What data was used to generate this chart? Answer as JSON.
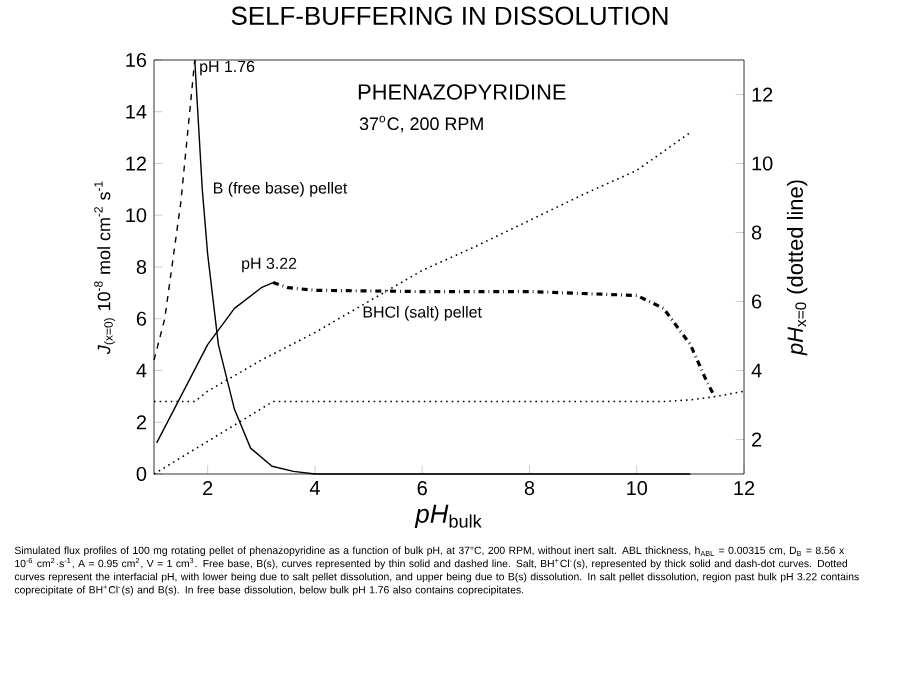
{
  "chart_data": {
    "type": "line",
    "title": "SELF-BUFFERING IN DISSOLUTION",
    "xlabel": "*pH*$_{bulk}$",
    "ylabel": "*J*$_{(x=0)}$ 10$^{-8}$ mol cm$^{-2}$ s$^{-1}$",
    "y2label": "*pH*$_{x=0}$ (dotted line)",
    "xlim": [
      1,
      12
    ],
    "xticks": [
      2,
      4,
      6,
      8,
      10,
      12
    ],
    "ylim": [
      0,
      16
    ],
    "yticks": [
      0,
      2,
      4,
      6,
      8,
      10,
      12,
      14,
      16
    ],
    "y2lim": [
      1,
      13
    ],
    "y2ticks": [
      2,
      4,
      6,
      8,
      10,
      12
    ],
    "series": [
      {
        "color": "#000000",
        "line_style": "dashed",
        "x": [
          1,
          1.2,
          1.5,
          1.76
        ],
        "values": [
          4.4,
          6,
          10.5,
          16
        ]
      },
      {
        "color": "#000000",
        "line_style": "solid",
        "x": [
          1.76,
          1.9,
          2.0,
          2.2,
          2.5,
          2.8,
          3.2,
          3.6,
          4,
          4.5,
          11
        ],
        "values": [
          16,
          11,
          8.5,
          5,
          2.5,
          1.0,
          0.3,
          0.1,
          0,
          0,
          0
        ]
      },
      {
        "color": "#000000",
        "line_style": "solid",
        "x": [
          1.05,
          1.5,
          2,
          2.5,
          3,
          3.22
        ],
        "values": [
          1.2,
          3,
          5,
          6.4,
          7.2,
          7.4
        ]
      },
      {
        "color": "#000000",
        "line_style": "dashdot",
        "x": [
          3.22,
          3.5,
          4,
          6,
          8,
          10,
          10.5,
          11,
          11.3,
          11.45
        ],
        "values": [
          7.4,
          7.2,
          7.1,
          7.05,
          7.05,
          6.9,
          6.4,
          5.0,
          3.6,
          3.0
        ]
      },
      {
        "color": "#000000",
        "line_style": "dotted",
        "axis": "y2",
        "x": [
          1,
          1.76,
          2,
          3,
          4,
          5,
          6,
          7,
          8,
          9,
          10,
          11
        ],
        "values": [
          3.1,
          3.1,
          3.4,
          4.3,
          5.1,
          6.0,
          6.9,
          7.6,
          8.35,
          9.1,
          9.8,
          10.9
        ]
      },
      {
        "color": "#000000",
        "line_style": "dotted",
        "axis": "y2",
        "x": [
          1,
          3.22,
          10.5,
          11,
          11.5,
          12
        ],
        "values": [
          1,
          3.1,
          3.1,
          3.15,
          3.25,
          3.4
        ]
      }
    ],
    "annotations": [
      {
        "text": "pH 1.76",
        "x": 1.76,
        "y": 16
      },
      {
        "text": "pH 3.22",
        "x": 3.22,
        "y": 7.4
      },
      {
        "text": "B (free base) pellet",
        "x": 1.9,
        "y": 11
      },
      {
        "text": "BHCl (salt) pellet",
        "x": 6,
        "y": 7.05
      },
      "PHENAZOPYRIDINE",
      "37$^{o}$C, 200 RPM",
      "Simulated flux profiles of 100 mg rotating pellet of phenazopyridine as a function of bulk pH, at 37°C, 200 RPM, without inert salt. ABL thickness, h$_{ABL}$ = 0.00315 cm, D$_{B}$ = 8.56 x 10$^{-6}$ cm$^{2}$·s$^{-1}$, A = 0.95 cm$^{2}$, V = 1 cm$^{3}$. Free base, B(s), curves represented by thin solid and dashed line.  Salt,  BH$^{+}$Cl$^{-}$(s), represented by thick solid and dash-dot curves. Dotted curves represent the interfacial pH, with lower being due to salt pellet dissolution, and upper being due to B(s) dissolution.  In salt pellet dissolution, region past bulk pH 3.22 contains coprecipitate of BH$^{+}$Cl$^{-}$(s)  and B(s).  In free base dissolution, below bulk pH 1.76 also contains coprecipitates."
    ]
  }
}
